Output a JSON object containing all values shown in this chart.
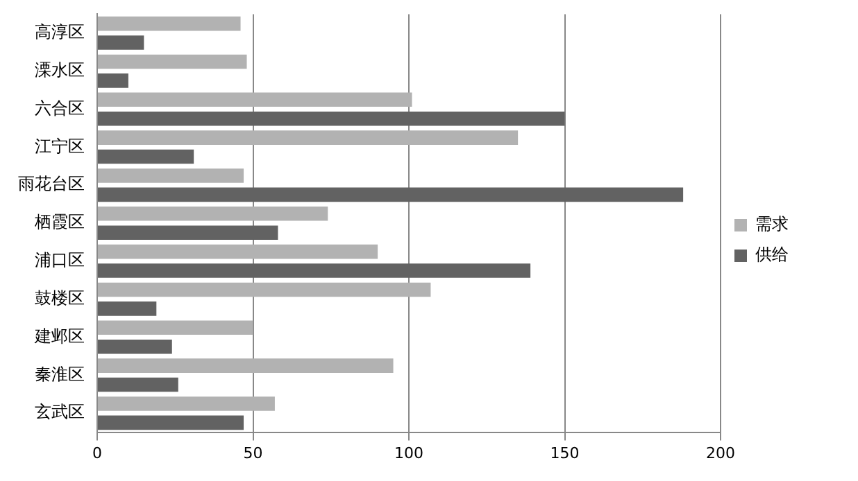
{
  "chart_data": {
    "type": "bar",
    "orientation": "horizontal",
    "categories": [
      "高淳区",
      "溧水区",
      "六合区",
      "江宁区",
      "雨花台区",
      "栖霞区",
      "浦口区",
      "鼓楼区",
      "建邺区",
      "秦淮区",
      "玄武区"
    ],
    "series": [
      {
        "name": "需求",
        "color": "#b2b2b2",
        "values": [
          46,
          48,
          101,
          135,
          47,
          74,
          90,
          107,
          50,
          95,
          57
        ]
      },
      {
        "name": "供给",
        "color": "#626262",
        "values": [
          15,
          10,
          150,
          31,
          188,
          58,
          139,
          19,
          24,
          26,
          47
        ]
      }
    ],
    "xlim": [
      0,
      200
    ],
    "xticks": [
      0,
      50,
      100,
      150,
      200
    ],
    "grid": "x",
    "legend": "right"
  }
}
